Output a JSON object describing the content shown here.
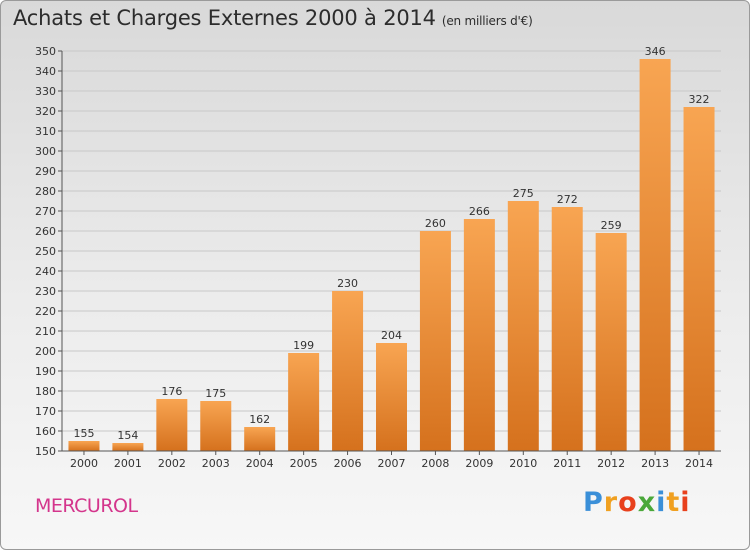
{
  "title": "Achats et Charges Externes 2000 à 2014",
  "subtitle": "(en milliers d'€)",
  "commune": "MERCUROL",
  "logo": {
    "text": "Proxiti",
    "letters": [
      {
        "char": "P",
        "color": "#3a8fd8"
      },
      {
        "char": "r",
        "color": "#f0a020"
      },
      {
        "char": "o",
        "color": "#e8401c"
      },
      {
        "char": "x",
        "color": "#4aa83a"
      },
      {
        "char": "i",
        "color": "#3a8fd8"
      },
      {
        "char": "t",
        "color": "#f0a020"
      },
      {
        "char": "i",
        "color": "#e8401c"
      }
    ]
  },
  "colors": {
    "bar_top": "#f8a552",
    "bar_bottom": "#d5711d",
    "grid": "#c8c8c8",
    "axis": "#555555",
    "text": "#333333",
    "commune": "#d4358c"
  },
  "chart_data": {
    "type": "bar",
    "categories": [
      "2000",
      "2001",
      "2002",
      "2003",
      "2004",
      "2005",
      "2006",
      "2007",
      "2008",
      "2009",
      "2010",
      "2011",
      "2012",
      "2013",
      "2014"
    ],
    "values": [
      155,
      154,
      176,
      175,
      162,
      199,
      230,
      204,
      260,
      266,
      275,
      272,
      259,
      346,
      322
    ],
    "data_labels": [
      "155",
      "154",
      "176",
      "175",
      "162",
      "199",
      "230",
      "204",
      "260",
      "266",
      "275",
      "272",
      "259",
      "346",
      "322"
    ],
    "ylim": [
      150,
      350
    ],
    "yticks": [
      "150",
      "160",
      "170",
      "180",
      "190",
      "200",
      "210",
      "220",
      "230",
      "240",
      "250",
      "260",
      "270",
      "280",
      "290",
      "300",
      "310",
      "320",
      "330",
      "340",
      "350"
    ],
    "xlabel": "",
    "ylabel": "",
    "grid": true,
    "legend": "none"
  }
}
